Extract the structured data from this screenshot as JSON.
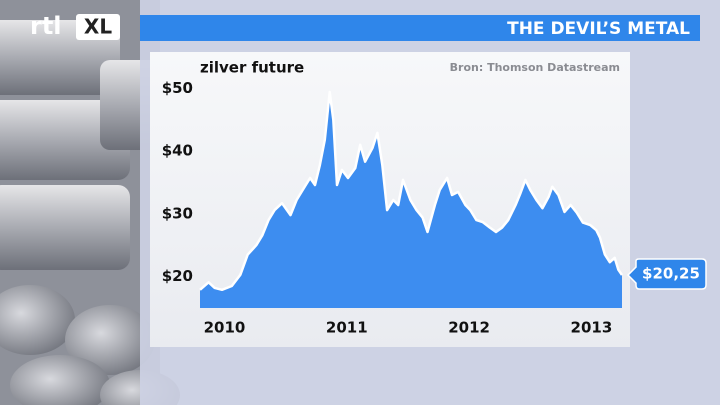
{
  "header": {
    "logo": [
      "rtl",
      "XL"
    ],
    "title": "THE DEVIL’S METAL"
  },
  "chart_data": {
    "type": "area",
    "subtitle": "zilver future",
    "source": "Bron: Thomson Datastream",
    "xlim": [
      2009.8,
      2013.25
    ],
    "xticks": [
      2010,
      2011,
      2012,
      2013
    ],
    "ylim": [
      15,
      51
    ],
    "yticks": [
      {
        "value": 20,
        "label": "$20"
      },
      {
        "value": 30,
        "label": "$30"
      },
      {
        "value": 40,
        "label": "$40"
      },
      {
        "value": 50,
        "label": "$50"
      }
    ],
    "grid": false,
    "series": [
      {
        "color": "#3d8df0",
        "x": [
          2009.8,
          2009.87,
          2009.92,
          2009.98,
          2010.06,
          2010.13,
          2010.19,
          2010.26,
          2010.31,
          2010.36,
          2010.41,
          2010.47,
          2010.54,
          2010.59,
          2010.64,
          2010.7,
          2010.74,
          2010.78,
          2010.82,
          2010.86,
          2010.89,
          2010.92,
          2010.96,
          2011.01,
          2011.07,
          2011.11,
          2011.15,
          2011.21,
          2011.25,
          2011.29,
          2011.33,
          2011.38,
          2011.42,
          2011.46,
          2011.52,
          2011.57,
          2011.62,
          2011.66,
          2011.72,
          2011.76,
          2011.82,
          2011.86,
          2011.91,
          2011.97,
          2012.01,
          2012.06,
          2012.11,
          2012.17,
          2012.22,
          2012.27,
          2012.32,
          2012.38,
          2012.42,
          2012.46,
          2012.5,
          2012.55,
          2012.6,
          2012.65,
          2012.68,
          2012.73,
          2012.78,
          2012.83,
          2012.88,
          2012.93,
          2012.99,
          2013.04,
          2013.07,
          2013.11,
          2013.15,
          2013.19,
          2013.22,
          2013.25
        ],
        "values": [
          17.9,
          19.1,
          18.2,
          17.9,
          18.5,
          20.3,
          23.5,
          25.0,
          26.6,
          29.0,
          30.6,
          31.7,
          29.8,
          32.2,
          33.8,
          35.7,
          34.6,
          37.8,
          41.8,
          49.4,
          45.0,
          34.6,
          37.0,
          35.7,
          37.3,
          41.0,
          38.3,
          40.5,
          42.9,
          37.8,
          30.6,
          32.2,
          31.4,
          35.4,
          32.2,
          30.6,
          29.4,
          27.1,
          31.4,
          33.8,
          35.7,
          33.0,
          33.5,
          31.4,
          30.6,
          29.0,
          28.7,
          27.8,
          27.1,
          27.8,
          29.0,
          31.4,
          33.3,
          35.4,
          33.8,
          32.2,
          30.9,
          32.7,
          34.3,
          33.0,
          30.3,
          31.4,
          30.2,
          28.6,
          28.2,
          27.4,
          26.2,
          23.5,
          22.3,
          23.0,
          21.1,
          20.25
        ],
        "value_labels": [
          null,
          null,
          null,
          null,
          null,
          null,
          null,
          null,
          null,
          null,
          null,
          null,
          null,
          null,
          null,
          null,
          null,
          null,
          null,
          null,
          null,
          null,
          null,
          null,
          null,
          null,
          null,
          null,
          null,
          null,
          null,
          null,
          null,
          null,
          null,
          null,
          null,
          null,
          null,
          null,
          null,
          null,
          null,
          null,
          null,
          null,
          null,
          null,
          null,
          null,
          null,
          null,
          null,
          null,
          null,
          null,
          null,
          null,
          null,
          null,
          null,
          null,
          null,
          null,
          null,
          null,
          null,
          null,
          null,
          null,
          null,
          "$20,25"
        ]
      }
    ]
  }
}
